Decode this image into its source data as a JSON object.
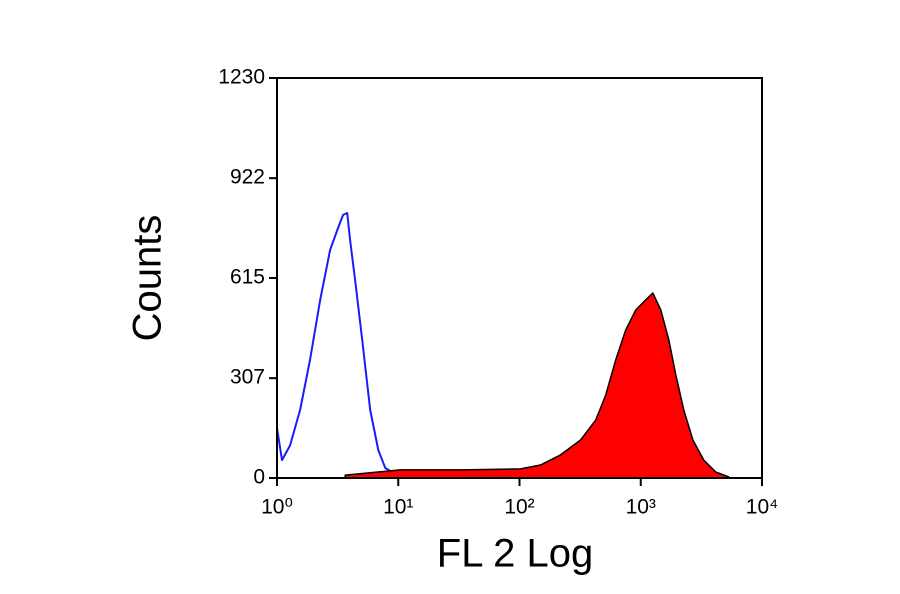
{
  "chart_data": {
    "type": "histogram",
    "xlabel": "FL 2 Log",
    "ylabel": "Counts",
    "xscale": "log",
    "xlim": [
      1,
      10000
    ],
    "xticks": [
      {
        "value": 1,
        "label": "10⁰"
      },
      {
        "value": 10,
        "label": "10¹"
      },
      {
        "value": 100,
        "label": "10²"
      },
      {
        "value": 1000,
        "label": "10³"
      },
      {
        "value": 10000,
        "label": "10⁴"
      }
    ],
    "ylim": [
      0,
      1230
    ],
    "yticks": [
      0,
      307,
      615,
      922,
      1230
    ],
    "series": [
      {
        "color": "#1a1aff",
        "filled": false,
        "x": [
          1,
          1.1,
          1.28,
          1.55,
          1.87,
          2.27,
          2.74,
          3.19,
          3.51,
          3.79,
          4.01,
          4.41,
          5.04,
          5.87,
          6.84,
          7.81,
          9.44,
          15.2
        ],
        "values": [
          154,
          55,
          100,
          209,
          363,
          548,
          701,
          769,
          809,
          815,
          732,
          609,
          425,
          209,
          86,
          31,
          12,
          6
        ]
      },
      {
        "color": "#ff0000",
        "filled": true,
        "x": [
          3.65,
          10.4,
          32.5,
          102,
          149,
          218,
          319,
          425,
          514,
          621,
          751,
          910,
          1100,
          1256,
          1463,
          1702,
          1945,
          2266,
          2690,
          3314,
          4170,
          5336
        ],
        "values": [
          9,
          25,
          25,
          28,
          40,
          71,
          117,
          178,
          255,
          363,
          455,
          517,
          548,
          569,
          517,
          425,
          317,
          209,
          117,
          55,
          18,
          3
        ]
      }
    ]
  }
}
